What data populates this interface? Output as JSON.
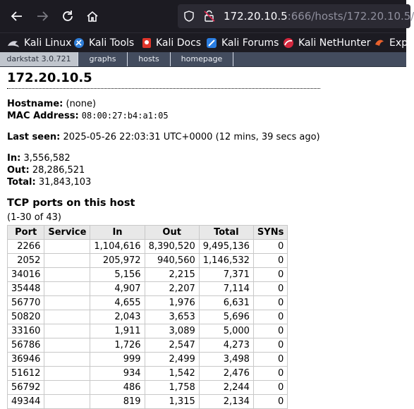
{
  "browser": {
    "url_host": "172.20.10.5",
    "url_rest": ":666/hosts/172.20.10.5/",
    "bookmarks": [
      {
        "label": "Kali Linux",
        "icon": "kali-dragon-icon"
      },
      {
        "label": "Kali Tools",
        "icon": "kali-tools-icon"
      },
      {
        "label": "Kali Docs",
        "icon": "kali-docs-icon"
      },
      {
        "label": "Kali Forums",
        "icon": "kali-forums-icon"
      },
      {
        "label": "Kali NetHunter",
        "icon": "nethunter-icon"
      },
      {
        "label": "Exp",
        "icon": "exploit-db-icon"
      }
    ]
  },
  "darkstat_nav": {
    "items": [
      "darkstat 3.0.721",
      "graphs",
      "hosts",
      "homepage"
    ]
  },
  "host": {
    "title": "172.20.10.5",
    "hostname_label": "Hostname:",
    "hostname_value": "(none)",
    "mac_label": "MAC Address:",
    "mac_value": "08:00:27:b4:a1:05",
    "last_seen_label": "Last seen:",
    "last_seen_value": "2025-05-26 22:03:31 UTC+0000 (12 mins, 39 secs ago)",
    "in_label": "In:",
    "in_value": "3,556,582",
    "out_label": "Out:",
    "out_value": "28,286,521",
    "total_label": "Total:",
    "total_value": "31,843,103"
  },
  "tcp": {
    "heading": "TCP ports on this host",
    "range": "(1-30 of 43)",
    "columns": [
      "Port",
      "Service",
      "In",
      "Out",
      "Total",
      "SYNs"
    ],
    "rows": [
      [
        "2266",
        "",
        "1,104,616",
        "8,390,520",
        "9,495,136",
        "0"
      ],
      [
        "2052",
        "",
        "205,972",
        "940,560",
        "1,146,532",
        "0"
      ],
      [
        "34016",
        "",
        "5,156",
        "2,215",
        "7,371",
        "0"
      ],
      [
        "35448",
        "",
        "4,907",
        "2,207",
        "7,114",
        "0"
      ],
      [
        "56770",
        "",
        "4,655",
        "1,976",
        "6,631",
        "0"
      ],
      [
        "50820",
        "",
        "2,043",
        "3,653",
        "5,696",
        "0"
      ],
      [
        "33160",
        "",
        "1,911",
        "3,089",
        "5,000",
        "0"
      ],
      [
        "56786",
        "",
        "1,726",
        "2,547",
        "4,273",
        "0"
      ],
      [
        "36946",
        "",
        "999",
        "2,499",
        "3,498",
        "0"
      ],
      [
        "51612",
        "",
        "934",
        "1,542",
        "2,476",
        "0"
      ],
      [
        "56792",
        "",
        "486",
        "1,758",
        "2,244",
        "0"
      ],
      [
        "49344",
        "",
        "819",
        "1,315",
        "2,134",
        "0"
      ]
    ]
  }
}
